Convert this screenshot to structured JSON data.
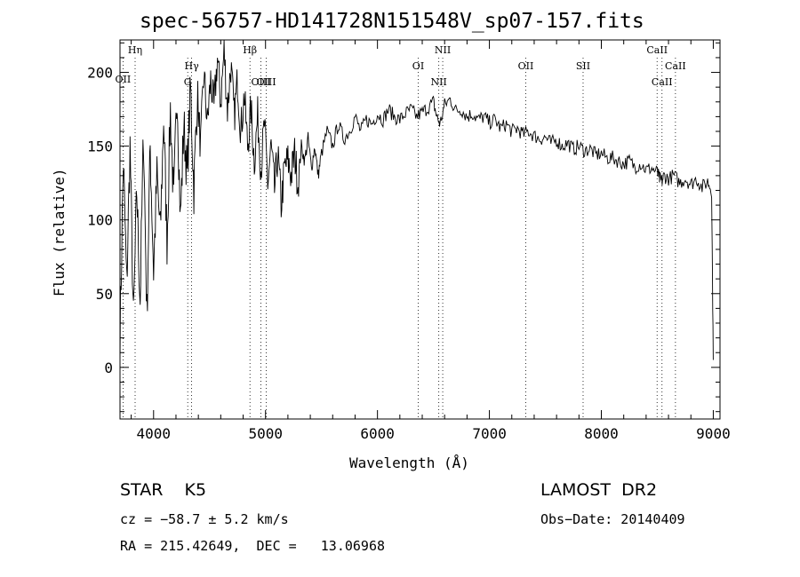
{
  "chart_data": {
    "type": "line",
    "title": "spec-56757-HD141728N151548V_sp07-157.fits",
    "xlabel": "Wavelength (Å)",
    "ylabel": "Flux (relative)",
    "xlim": [
      3700,
      9060
    ],
    "ylim": [
      -35,
      222
    ],
    "xticks": [
      4000,
      5000,
      6000,
      7000,
      8000,
      9000
    ],
    "yticks": [
      0,
      50,
      100,
      150,
      200
    ],
    "grid": false,
    "legend": "none",
    "series_color": "#000000",
    "series": [
      {
        "x": [
          3700,
          3730,
          3760,
          3790,
          3820,
          3850,
          3880,
          3910,
          3940,
          3970,
          4000,
          4030,
          4060,
          4090,
          4120,
          4150,
          4180,
          4210,
          4240,
          4270,
          4300,
          4330,
          4360,
          4390,
          4420,
          4450,
          4480,
          4510,
          4540,
          4570,
          4600,
          4630,
          4660,
          4690,
          4720,
          4750,
          4780,
          4810,
          4840,
          4870,
          4900,
          4930,
          4960,
          4990,
          5020,
          5050,
          5080,
          5110,
          5140,
          5170,
          5200,
          5230,
          5260,
          5290,
          5320,
          5350,
          5380,
          5410,
          5440,
          5470,
          5500,
          5550,
          5600,
          5650,
          5700,
          5750,
          5800,
          5850,
          5900,
          5950,
          6000,
          6050,
          6100,
          6150,
          6200,
          6250,
          6300,
          6350,
          6400,
          6450,
          6500,
          6530,
          6560,
          6600,
          6650,
          6700,
          6750,
          6800,
          6850,
          6900,
          6950,
          7000,
          7050,
          7100,
          7150,
          7200,
          7250,
          7300,
          7350,
          7400,
          7450,
          7500,
          7550,
          7600,
          7650,
          7700,
          7750,
          7800,
          7850,
          7900,
          7950,
          8000,
          8050,
          8100,
          8150,
          8200,
          8250,
          8300,
          8350,
          8400,
          8450,
          8500,
          8520,
          8540,
          8560,
          8600,
          8650,
          8700,
          8750,
          8800,
          8850,
          8900,
          8950,
          8985,
          9000
        ],
        "y": [
          20,
          140,
          55,
          150,
          30,
          120,
          45,
          160,
          35,
          150,
          65,
          130,
          90,
          170,
          85,
          175,
          110,
          190,
          100,
          165,
          130,
          190,
          120,
          185,
          150,
          200,
          165,
          195,
          175,
          210,
          180,
          215,
          175,
          205,
          170,
          195,
          160,
          185,
          150,
          175,
          140,
          170,
          135,
          165,
          125,
          150,
          120,
          145,
          110,
          135,
          140,
          130,
          145,
          125,
          150,
          140,
          155,
          135,
          150,
          130,
          145,
          160,
          150,
          165,
          155,
          160,
          170,
          160,
          168,
          165,
          172,
          168,
          175,
          170,
          168,
          172,
          175,
          170,
          173,
          176,
          180,
          170,
          165,
          178,
          182,
          174,
          175,
          170,
          172,
          168,
          170,
          166,
          168,
          162,
          165,
          160,
          162,
          158,
          160,
          157,
          155,
          156,
          152,
          154,
          150,
          152,
          148,
          150,
          147,
          148,
          144,
          145,
          142,
          142,
          140,
          138,
          140,
          136,
          138,
          134,
          135,
          132,
          128,
          126,
          130,
          128,
          130,
          125,
          128,
          124,
          128,
          122,
          126,
          120,
          5
        ]
      }
    ],
    "line_marks": [
      {
        "label": "Hη",
        "x": 3835
      },
      {
        "label": "OII",
        "x": 3727
      },
      {
        "label": "Hγ",
        "x": 4340
      },
      {
        "label": "G",
        "x": 4305
      },
      {
        "label": "Hβ",
        "x": 4861
      },
      {
        "label": "OIII",
        "x": 4959
      },
      {
        "label": "OIII",
        "x": 5007
      },
      {
        "label": "OI",
        "x": 6364
      },
      {
        "label": "NII",
        "x": 6583
      },
      {
        "label": "NII",
        "x": 6548
      },
      {
        "label": "OII",
        "x": 7325
      },
      {
        "label": "SII",
        "x": 7837
      },
      {
        "label": "CaII",
        "x": 8498
      },
      {
        "label": "CaII",
        "x": 8542
      },
      {
        "label": "CaII",
        "x": 8662
      }
    ]
  },
  "info": {
    "classification": "STAR    K5",
    "redshift": "cz = −58.7 ± 5.2 km/s",
    "coords": "RA = 215.42649,  DEC =   13.06968",
    "survey": "LAMOST  DR2",
    "obs_date": "Obs−Date: 20140409"
  }
}
